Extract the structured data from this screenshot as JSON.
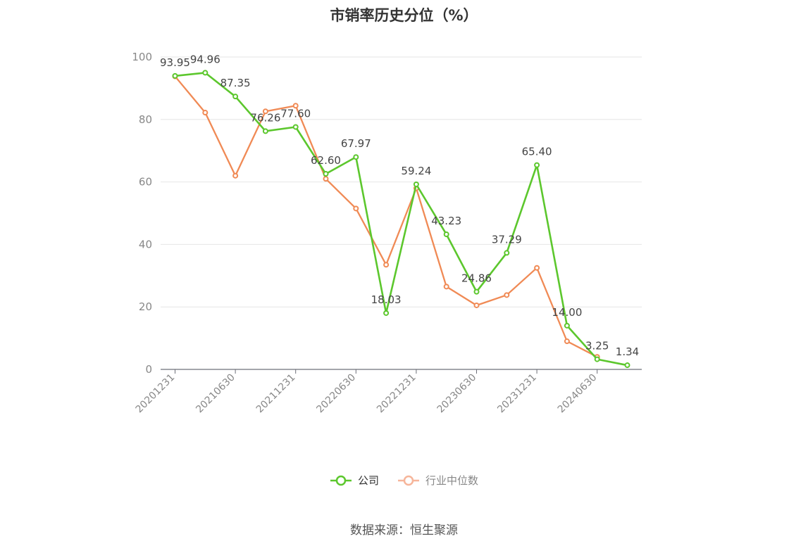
{
  "title": "市销率历史分位（%）",
  "source": "数据来源：恒生聚源",
  "legend": {
    "company": "公司",
    "industry": "行业中位数"
  },
  "colors": {
    "company": "#5cc72d",
    "industry": "#f08a55",
    "grid": "#e6e6e6",
    "axis": "#6e7079",
    "label": "#444444",
    "tick": "#888888"
  },
  "chart_data": {
    "type": "line",
    "ylim": [
      0,
      100
    ],
    "yticks": [
      0,
      20,
      40,
      60,
      80,
      100
    ],
    "xticklabels": [
      "20201231",
      "20210630",
      "20211231",
      "20220630",
      "20221231",
      "20230630",
      "20231231",
      "20240630"
    ],
    "x": [
      "20201231",
      "20210331",
      "20210630",
      "20210930",
      "20211231",
      "20220331",
      "20220630",
      "20220930",
      "20221231",
      "20230331",
      "20230630",
      "20230930",
      "20231231",
      "20240331",
      "20240630",
      "20240930"
    ],
    "series": [
      {
        "name": "公司",
        "values": [
          93.95,
          94.96,
          87.35,
          76.26,
          77.6,
          62.6,
          67.97,
          18.03,
          59.24,
          43.23,
          24.86,
          37.29,
          65.4,
          14.0,
          3.25,
          1.34
        ],
        "labels": [
          "93.95",
          "94.96",
          "87.35",
          "76.26",
          "77.60",
          "62.60",
          "67.97",
          "18.03",
          "59.24",
          "43.23",
          "24.86",
          "37.29",
          "65.40",
          "14.00",
          "3.25",
          "1.34"
        ]
      },
      {
        "name": "行业中位数",
        "values": [
          93.8,
          82.2,
          62.0,
          82.6,
          84.4,
          61.0,
          51.5,
          33.5,
          58.0,
          26.5,
          20.5,
          23.8,
          32.5,
          9.0,
          4.0,
          null
        ]
      }
    ]
  }
}
